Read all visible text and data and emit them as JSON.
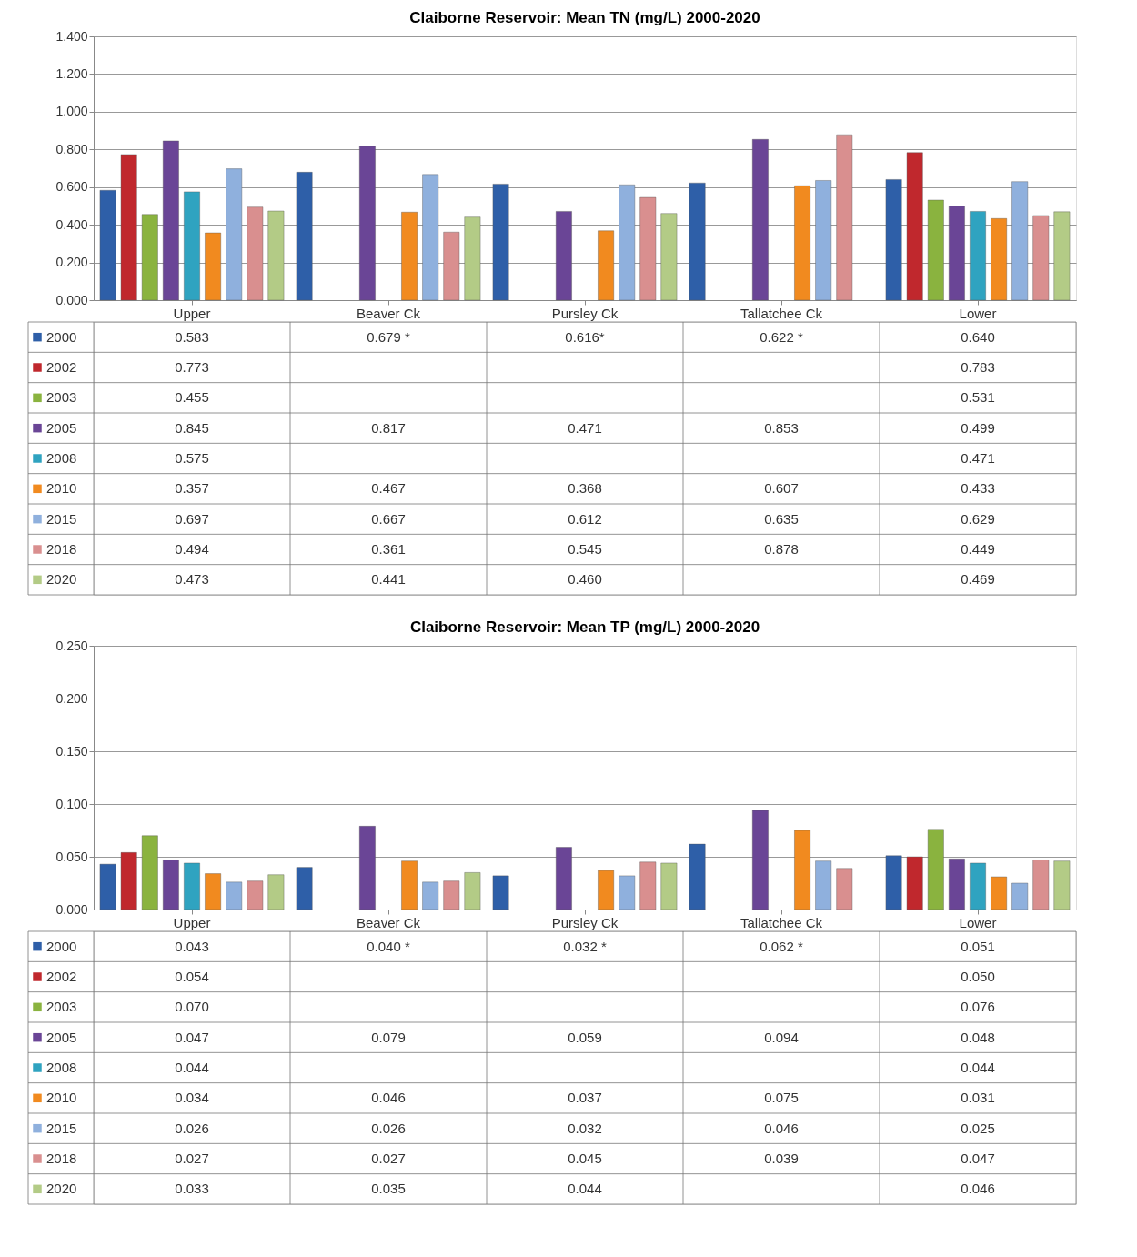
{
  "chart_data": [
    {
      "type": "bar",
      "title": "Claiborne Reservoir: Mean TN (mg/L) 2000-2020",
      "categories": [
        "Upper",
        "Beaver Ck",
        "Pursley Ck",
        "Tallatchee Ck",
        "Lower"
      ],
      "ylim": [
        0,
        1.4
      ],
      "yticks": [
        {
          "value": 0,
          "label": "0.000"
        },
        {
          "value": 0.2,
          "label": "0.200"
        },
        {
          "value": 0.4,
          "label": "0.400"
        },
        {
          "value": 0.6,
          "label": "0.600"
        },
        {
          "value": 0.8,
          "label": "0.800"
        },
        {
          "value": 1.0,
          "label": "1.000"
        },
        {
          "value": 1.2,
          "label": "1.200"
        },
        {
          "value": 1.4,
          "label": "1.400"
        }
      ],
      "grid": "y",
      "legend": "bottom left",
      "series": [
        {
          "name": "2000",
          "color": "#2e5fa8",
          "values": [
            0.583,
            0.679,
            0.616,
            0.622,
            0.64
          ],
          "value_labels": [
            "0.583",
            "0.679 *",
            "0.616*",
            "0.622 *",
            "0.640"
          ]
        },
        {
          "name": "2002",
          "color": "#c0282d",
          "values": [
            0.773,
            null,
            null,
            null,
            0.783
          ],
          "value_labels": [
            "0.773",
            null,
            null,
            null,
            "0.783"
          ]
        },
        {
          "name": "2003",
          "color": "#8ab33f",
          "values": [
            0.455,
            null,
            null,
            null,
            0.531
          ],
          "value_labels": [
            "0.455",
            null,
            null,
            null,
            "0.531"
          ]
        },
        {
          "name": "2005",
          "color": "#6a4596",
          "values": [
            0.845,
            0.817,
            0.471,
            0.853,
            0.499
          ],
          "value_labels": [
            "0.845",
            "0.817",
            "0.471",
            "0.853",
            "0.499"
          ]
        },
        {
          "name": "2008",
          "color": "#2fa3c0",
          "values": [
            0.575,
            null,
            null,
            null,
            0.471
          ],
          "value_labels": [
            "0.575",
            null,
            null,
            null,
            "0.471"
          ]
        },
        {
          "name": "2010",
          "color": "#f18a1f",
          "values": [
            0.357,
            0.467,
            0.368,
            0.607,
            0.433
          ],
          "value_labels": [
            "0.357",
            "0.467",
            "0.368",
            "0.607",
            "0.433"
          ]
        },
        {
          "name": "2015",
          "color": "#8fb0dd",
          "values": [
            0.697,
            0.667,
            0.612,
            0.635,
            0.629
          ],
          "value_labels": [
            "0.697",
            "0.667",
            "0.612",
            "0.635",
            "0.629"
          ]
        },
        {
          "name": "2018",
          "color": "#d98f8f",
          "values": [
            0.494,
            0.361,
            0.545,
            0.878,
            0.449
          ],
          "value_labels": [
            "0.494",
            "0.361",
            "0.545",
            "0.878",
            "0.449"
          ]
        },
        {
          "name": "2020",
          "color": "#b3cb86",
          "values": [
            0.473,
            0.441,
            0.46,
            null,
            0.469
          ],
          "value_labels": [
            "0.473",
            "0.441",
            "0.460",
            null,
            "0.469"
          ]
        }
      ]
    },
    {
      "type": "bar",
      "title": "Claiborne Reservoir: Mean TP (mg/L) 2000-2020",
      "categories": [
        "Upper",
        "Beaver Ck",
        "Pursley Ck",
        "Tallatchee Ck",
        "Lower"
      ],
      "ylim": [
        0,
        0.25
      ],
      "yticks": [
        {
          "value": 0,
          "label": "0.000"
        },
        {
          "value": 0.05,
          "label": "0.050"
        },
        {
          "value": 0.1,
          "label": "0.100"
        },
        {
          "value": 0.15,
          "label": "0.150"
        },
        {
          "value": 0.2,
          "label": "0.200"
        },
        {
          "value": 0.25,
          "label": "0.250"
        }
      ],
      "grid": "y",
      "legend": "bottom left",
      "series": [
        {
          "name": "2000",
          "color": "#2e5fa8",
          "values": [
            0.043,
            0.04,
            0.032,
            0.062,
            0.051
          ],
          "value_labels": [
            "0.043",
            "0.040  *",
            "0.032 *",
            "0.062 *",
            "0.051"
          ]
        },
        {
          "name": "2002",
          "color": "#c0282d",
          "values": [
            0.054,
            null,
            null,
            null,
            0.05
          ],
          "value_labels": [
            "0.054",
            null,
            null,
            null,
            "0.050"
          ]
        },
        {
          "name": "2003",
          "color": "#8ab33f",
          "values": [
            0.07,
            null,
            null,
            null,
            0.076
          ],
          "value_labels": [
            "0.070",
            null,
            null,
            null,
            "0.076"
          ]
        },
        {
          "name": "2005",
          "color": "#6a4596",
          "values": [
            0.047,
            0.079,
            0.059,
            0.094,
            0.048
          ],
          "value_labels": [
            "0.047",
            "0.079",
            "0.059",
            "0.094",
            "0.048"
          ]
        },
        {
          "name": "2008",
          "color": "#2fa3c0",
          "values": [
            0.044,
            null,
            null,
            null,
            0.044
          ],
          "value_labels": [
            "0.044",
            null,
            null,
            null,
            "0.044"
          ]
        },
        {
          "name": "2010",
          "color": "#f18a1f",
          "values": [
            0.034,
            0.046,
            0.037,
            0.075,
            0.031
          ],
          "value_labels": [
            "0.034",
            "0.046",
            "0.037",
            "0.075",
            "0.031"
          ]
        },
        {
          "name": "2015",
          "color": "#8fb0dd",
          "values": [
            0.026,
            0.026,
            0.032,
            0.046,
            0.025
          ],
          "value_labels": [
            "0.026",
            "0.026",
            "0.032",
            "0.046",
            "0.025"
          ]
        },
        {
          "name": "2018",
          "color": "#d98f8f",
          "values": [
            0.027,
            0.027,
            0.045,
            0.039,
            0.047
          ],
          "value_labels": [
            "0.027",
            "0.027",
            "0.045",
            "0.039",
            "0.047"
          ]
        },
        {
          "name": "2020",
          "color": "#b3cb86",
          "values": [
            0.033,
            0.035,
            0.044,
            null,
            0.046
          ],
          "value_labels": [
            "0.033",
            "0.035",
            "0.044",
            null,
            "0.046"
          ]
        }
      ]
    }
  ]
}
